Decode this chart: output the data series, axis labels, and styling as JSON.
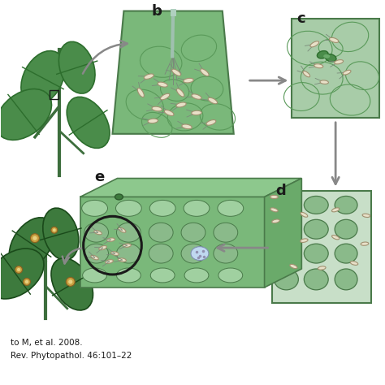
{
  "bg_color": "#ffffff",
  "panel_bg": "#8fbc8f",
  "light_green": "#c8dfc8",
  "medium_green": "#6aaa6a",
  "dark_green": "#3d7a3d",
  "leaf_color": "#4a8c4a",
  "leaf_dark": "#2d6e2d",
  "arrow_color": "#888888",
  "bacteria_color": "#e8e0c8",
  "bacteria_outline": "#a09070",
  "cell_wall_color": "#5a9a5a",
  "label_b": "b",
  "label_c": "c",
  "label_d": "d",
  "label_e": "e",
  "citation1": "to M, et al. 2008.",
  "citation2": "Rev. Phytopathol. 46:101–22",
  "panel_green_main": "#7ab87a",
  "panel_green_light": "#a8cca8",
  "panel_border": "#4a7a4a",
  "stomata_color": "#5a9a5a",
  "cell_interior": "#b8d8b8",
  "circle_outline": "#1a1a1a",
  "flagella_color": "#7a8a7a",
  "needle_color": "#a0c0b0"
}
